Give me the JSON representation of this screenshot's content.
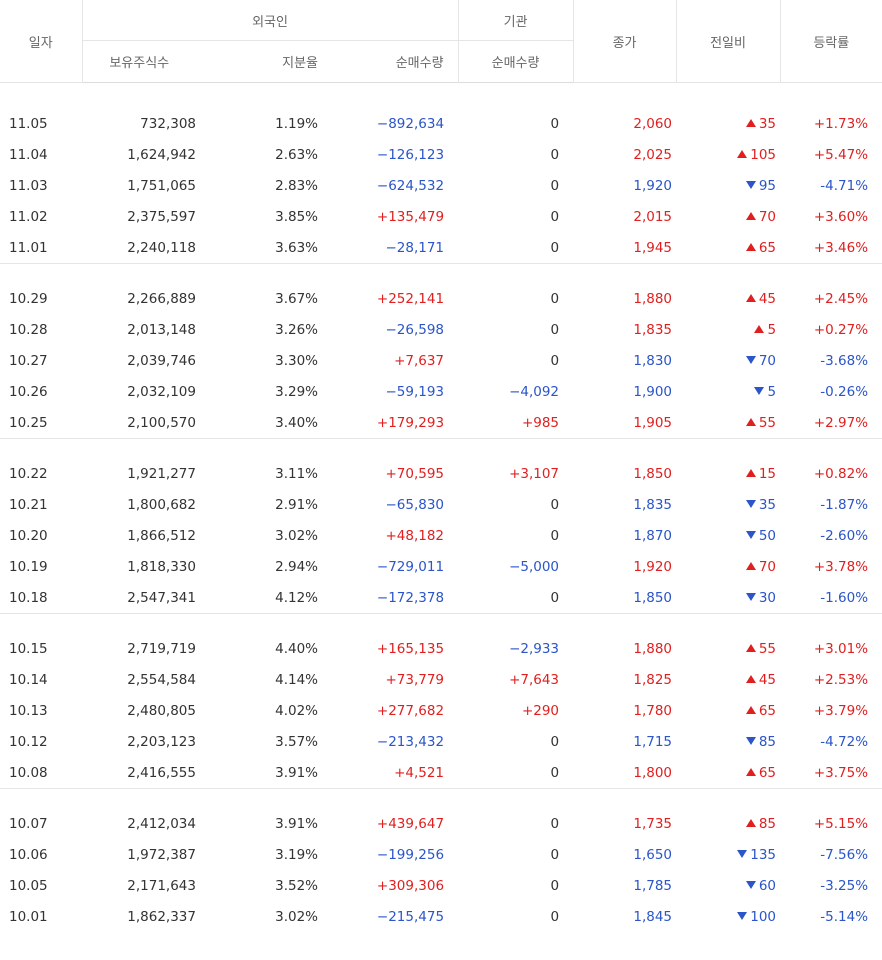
{
  "header": {
    "date": "일자",
    "foreign": "외국인",
    "institution": "기관",
    "close": "종가",
    "change": "전일비",
    "rate": "등락률",
    "holdings": "보유주식수",
    "share": "지분율",
    "foreign_net": "순매수량",
    "inst_net": "순매수량"
  },
  "colors": {
    "up": "#e02020",
    "down": "#2b55c8"
  },
  "groups": [
    [
      [
        "11.05",
        "732,308",
        "1.19%",
        "−892,634",
        "0",
        "2,060",
        "up",
        "35",
        "+1.73%"
      ],
      [
        "11.04",
        "1,624,942",
        "2.63%",
        "−126,123",
        "0",
        "2,025",
        "up",
        "105",
        "+5.47%"
      ],
      [
        "11.03",
        "1,751,065",
        "2.83%",
        "−624,532",
        "0",
        "1,920",
        "down",
        "95",
        "-4.71%"
      ],
      [
        "11.02",
        "2,375,597",
        "3.85%",
        "+135,479",
        "0",
        "2,015",
        "up",
        "70",
        "+3.60%"
      ],
      [
        "11.01",
        "2,240,118",
        "3.63%",
        "−28,171",
        "0",
        "1,945",
        "up",
        "65",
        "+3.46%"
      ]
    ],
    [
      [
        "10.29",
        "2,266,889",
        "3.67%",
        "+252,141",
        "0",
        "1,880",
        "up",
        "45",
        "+2.45%"
      ],
      [
        "10.28",
        "2,013,148",
        "3.26%",
        "−26,598",
        "0",
        "1,835",
        "up",
        "5",
        "+0.27%"
      ],
      [
        "10.27",
        "2,039,746",
        "3.30%",
        "+7,637",
        "0",
        "1,830",
        "down",
        "70",
        "-3.68%"
      ],
      [
        "10.26",
        "2,032,109",
        "3.29%",
        "−59,193",
        "−4,092",
        "1,900",
        "down",
        "5",
        "-0.26%"
      ],
      [
        "10.25",
        "2,100,570",
        "3.40%",
        "+179,293",
        "+985",
        "1,905",
        "up",
        "55",
        "+2.97%"
      ]
    ],
    [
      [
        "10.22",
        "1,921,277",
        "3.11%",
        "+70,595",
        "+3,107",
        "1,850",
        "up",
        "15",
        "+0.82%"
      ],
      [
        "10.21",
        "1,800,682",
        "2.91%",
        "−65,830",
        "0",
        "1,835",
        "down",
        "35",
        "-1.87%"
      ],
      [
        "10.20",
        "1,866,512",
        "3.02%",
        "+48,182",
        "0",
        "1,870",
        "down",
        "50",
        "-2.60%"
      ],
      [
        "10.19",
        "1,818,330",
        "2.94%",
        "−729,011",
        "−5,000",
        "1,920",
        "up",
        "70",
        "+3.78%"
      ],
      [
        "10.18",
        "2,547,341",
        "4.12%",
        "−172,378",
        "0",
        "1,850",
        "down",
        "30",
        "-1.60%"
      ]
    ],
    [
      [
        "10.15",
        "2,719,719",
        "4.40%",
        "+165,135",
        "−2,933",
        "1,880",
        "up",
        "55",
        "+3.01%"
      ],
      [
        "10.14",
        "2,554,584",
        "4.14%",
        "+73,779",
        "+7,643",
        "1,825",
        "up",
        "45",
        "+2.53%"
      ],
      [
        "10.13",
        "2,480,805",
        "4.02%",
        "+277,682",
        "+290",
        "1,780",
        "up",
        "65",
        "+3.79%"
      ],
      [
        "10.12",
        "2,203,123",
        "3.57%",
        "−213,432",
        "0",
        "1,715",
        "down",
        "85",
        "-4.72%"
      ],
      [
        "10.08",
        "2,416,555",
        "3.91%",
        "+4,521",
        "0",
        "1,800",
        "up",
        "65",
        "+3.75%"
      ]
    ],
    [
      [
        "10.07",
        "2,412,034",
        "3.91%",
        "+439,647",
        "0",
        "1,735",
        "up",
        "85",
        "+5.15%"
      ],
      [
        "10.06",
        "1,972,387",
        "3.19%",
        "−199,256",
        "0",
        "1,650",
        "down",
        "135",
        "-7.56%"
      ],
      [
        "10.05",
        "2,171,643",
        "3.52%",
        "+309,306",
        "0",
        "1,785",
        "down",
        "60",
        "-3.25%"
      ],
      [
        "10.01",
        "1,862,337",
        "3.02%",
        "−215,475",
        "0",
        "1,845",
        "down",
        "100",
        "-5.14%"
      ]
    ]
  ]
}
